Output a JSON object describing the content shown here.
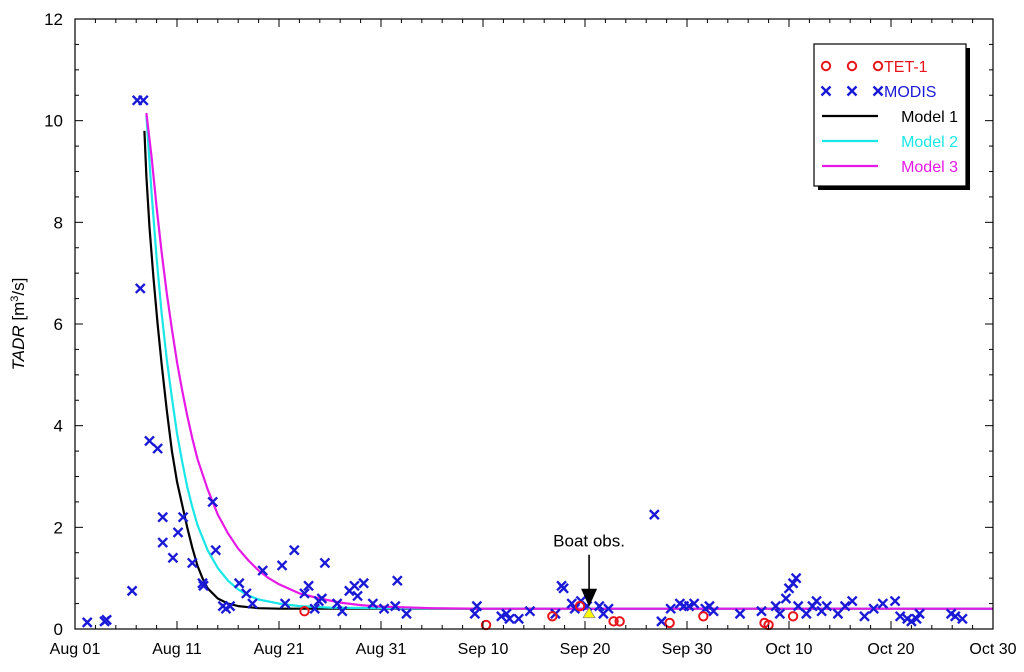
{
  "chart_data": {
    "type": "scatter",
    "xlabel": "",
    "ylabel_main": "TADR",
    "ylabel_unit_pre": " [m",
    "ylabel_unit_sup": "3",
    "ylabel_unit_post": "/s]",
    "x_origin": "Aug 01",
    "xlim": [
      0,
      90
    ],
    "ylim": [
      0,
      12
    ],
    "x_ticks": [
      {
        "day": 0,
        "label": "Aug 01"
      },
      {
        "day": 10,
        "label": "Aug 11"
      },
      {
        "day": 20,
        "label": "Aug 21"
      },
      {
        "day": 30,
        "label": "Aug 31"
      },
      {
        "day": 40,
        "label": "Sep 10"
      },
      {
        "day": 50,
        "label": "Sep 20"
      },
      {
        "day": 60,
        "label": "Sep 30"
      },
      {
        "day": 70,
        "label": "Oct 10"
      },
      {
        "day": 80,
        "label": "Oct 20"
      },
      {
        "day": 90,
        "label": "Oct 30"
      }
    ],
    "y_ticks": [
      0,
      2,
      4,
      6,
      8,
      10,
      12
    ],
    "grid": false,
    "legend_position": "top-right",
    "annotation": {
      "text": "Boat obs.",
      "day": 50.4,
      "value": 0.32,
      "color": "#ffff00"
    },
    "colors": {
      "tet1": "#e8141c",
      "modis": "#1a1ad6",
      "model1": "#000000",
      "model2": "#19e6e6",
      "model3": "#e619e6"
    },
    "series": [
      {
        "name": "TET-1",
        "kind": "marker-circle",
        "points": [
          [
            22.5,
            0.35
          ],
          [
            40.3,
            0.08
          ],
          [
            46.8,
            0.25
          ],
          [
            49.5,
            0.45
          ],
          [
            52.8,
            0.15
          ],
          [
            53.4,
            0.15
          ],
          [
            58.3,
            0.12
          ],
          [
            61.6,
            0.25
          ],
          [
            67.6,
            0.12
          ],
          [
            68.0,
            0.08
          ],
          [
            70.4,
            0.25
          ]
        ]
      },
      {
        "name": "MODIS",
        "kind": "marker-x",
        "points": [
          [
            1.2,
            0.13
          ],
          [
            2.9,
            0.15
          ],
          [
            3.1,
            0.18
          ],
          [
            5.6,
            0.75
          ],
          [
            6.1,
            10.4
          ],
          [
            6.7,
            10.4
          ],
          [
            6.4,
            6.7
          ],
          [
            7.3,
            3.7
          ],
          [
            8.1,
            3.55
          ],
          [
            8.6,
            2.2
          ],
          [
            8.6,
            1.7
          ],
          [
            9.6,
            1.4
          ],
          [
            10.1,
            1.9
          ],
          [
            10.6,
            2.2
          ],
          [
            11.5,
            1.3
          ],
          [
            12.5,
            0.9
          ],
          [
            12.6,
            0.85
          ],
          [
            13.5,
            2.5
          ],
          [
            13.8,
            1.55
          ],
          [
            14.5,
            0.45
          ],
          [
            15.2,
            0.45
          ],
          [
            14.8,
            0.4
          ],
          [
            16.1,
            0.9
          ],
          [
            16.8,
            0.7
          ],
          [
            17.4,
            0.5
          ],
          [
            18.4,
            1.15
          ],
          [
            20.3,
            1.25
          ],
          [
            20.6,
            0.5
          ],
          [
            21.5,
            1.55
          ],
          [
            22.5,
            0.7
          ],
          [
            22.9,
            0.85
          ],
          [
            23.5,
            0.4
          ],
          [
            23.9,
            0.55
          ],
          [
            24.2,
            0.6
          ],
          [
            24.5,
            1.3
          ],
          [
            25.7,
            0.5
          ],
          [
            26.2,
            0.35
          ],
          [
            26.9,
            0.75
          ],
          [
            27.4,
            0.85
          ],
          [
            27.7,
            0.65
          ],
          [
            28.3,
            0.9
          ],
          [
            29.2,
            0.5
          ],
          [
            30.3,
            0.4
          ],
          [
            31.4,
            0.45
          ],
          [
            31.6,
            0.95
          ],
          [
            32.5,
            0.3
          ],
          [
            39.2,
            0.3
          ],
          [
            39.4,
            0.45
          ],
          [
            41.8,
            0.25
          ],
          [
            42.3,
            0.3
          ],
          [
            42.6,
            0.2
          ],
          [
            43.5,
            0.2
          ],
          [
            44.6,
            0.35
          ],
          [
            47.1,
            0.3
          ],
          [
            47.7,
            0.85
          ],
          [
            47.9,
            0.8
          ],
          [
            48.7,
            0.5
          ],
          [
            49.0,
            0.4
          ],
          [
            49.6,
            0.55
          ],
          [
            50.2,
            0.45
          ],
          [
            51.4,
            0.45
          ],
          [
            51.8,
            0.3
          ],
          [
            52.3,
            0.4
          ],
          [
            56.8,
            2.25
          ],
          [
            57.5,
            0.15
          ],
          [
            58.4,
            0.4
          ],
          [
            59.3,
            0.5
          ],
          [
            59.7,
            0.45
          ],
          [
            60.2,
            0.45
          ],
          [
            60.7,
            0.5
          ],
          [
            61.8,
            0.4
          ],
          [
            62.2,
            0.45
          ],
          [
            62.6,
            0.35
          ],
          [
            65.2,
            0.3
          ],
          [
            67.3,
            0.35
          ],
          [
            68.7,
            0.45
          ],
          [
            69.1,
            0.3
          ],
          [
            69.7,
            0.6
          ],
          [
            70.0,
            0.8
          ],
          [
            70.4,
            0.9
          ],
          [
            70.7,
            1.0
          ],
          [
            70.9,
            0.45
          ],
          [
            71.7,
            0.3
          ],
          [
            72.3,
            0.45
          ],
          [
            72.7,
            0.55
          ],
          [
            73.2,
            0.35
          ],
          [
            73.7,
            0.45
          ],
          [
            74.8,
            0.3
          ],
          [
            75.5,
            0.45
          ],
          [
            76.2,
            0.55
          ],
          [
            77.4,
            0.25
          ],
          [
            78.3,
            0.4
          ],
          [
            79.2,
            0.5
          ],
          [
            80.4,
            0.55
          ],
          [
            80.9,
            0.25
          ],
          [
            81.6,
            0.2
          ],
          [
            82.0,
            0.15
          ],
          [
            82.5,
            0.2
          ],
          [
            82.8,
            0.3
          ],
          [
            85.9,
            0.3
          ],
          [
            86.3,
            0.25
          ],
          [
            87.0,
            0.2
          ]
        ]
      },
      {
        "name": "Model 1",
        "kind": "line",
        "points": [
          [
            6.8,
            9.8
          ],
          [
            7.0,
            8.9
          ],
          [
            7.3,
            7.9
          ],
          [
            7.7,
            6.9
          ],
          [
            8.1,
            6.0
          ],
          [
            8.5,
            5.2
          ],
          [
            9.0,
            4.3
          ],
          [
            9.5,
            3.5
          ],
          [
            10.0,
            2.9
          ],
          [
            10.5,
            2.45
          ],
          [
            11.0,
            2.0
          ],
          [
            11.5,
            1.6
          ],
          [
            12.0,
            1.25
          ],
          [
            12.5,
            1.0
          ],
          [
            13.0,
            0.8
          ],
          [
            14.0,
            0.6
          ],
          [
            15.0,
            0.5
          ],
          [
            16.0,
            0.45
          ],
          [
            18.0,
            0.41
          ],
          [
            20.0,
            0.4
          ],
          [
            25.0,
            0.4
          ],
          [
            30.0,
            0.4
          ],
          [
            40.0,
            0.4
          ],
          [
            50.0,
            0.4
          ],
          [
            60.0,
            0.4
          ],
          [
            70.0,
            0.4
          ],
          [
            80.0,
            0.4
          ],
          [
            90.0,
            0.4
          ]
        ]
      },
      {
        "name": "Model 2",
        "kind": "line",
        "points": [
          [
            7.0,
            10.1
          ],
          [
            7.5,
            8.6
          ],
          [
            8.0,
            7.3
          ],
          [
            8.5,
            6.2
          ],
          [
            9.0,
            5.3
          ],
          [
            9.5,
            4.55
          ],
          [
            10.0,
            3.85
          ],
          [
            10.5,
            3.3
          ],
          [
            11.0,
            2.8
          ],
          [
            11.5,
            2.4
          ],
          [
            12.0,
            2.05
          ],
          [
            13.0,
            1.55
          ],
          [
            14.0,
            1.2
          ],
          [
            15.0,
            0.95
          ],
          [
            16.0,
            0.78
          ],
          [
            17.0,
            0.66
          ],
          [
            18.0,
            0.58
          ],
          [
            20.0,
            0.5
          ],
          [
            22.0,
            0.45
          ],
          [
            25.0,
            0.42
          ],
          [
            30.0,
            0.41
          ],
          [
            40.0,
            0.4
          ],
          [
            60.0,
            0.4
          ],
          [
            90.0,
            0.4
          ]
        ]
      },
      {
        "name": "Model 3",
        "kind": "line",
        "points": [
          [
            7.0,
            10.15
          ],
          [
            7.5,
            9.3
          ],
          [
            8.0,
            8.3
          ],
          [
            8.5,
            7.4
          ],
          [
            9.0,
            6.6
          ],
          [
            9.5,
            5.9
          ],
          [
            10.0,
            5.25
          ],
          [
            10.5,
            4.7
          ],
          [
            11.0,
            4.2
          ],
          [
            11.5,
            3.75
          ],
          [
            12.0,
            3.35
          ],
          [
            13.0,
            2.75
          ],
          [
            14.0,
            2.25
          ],
          [
            15.0,
            1.88
          ],
          [
            16.0,
            1.58
          ],
          [
            17.0,
            1.35
          ],
          [
            18.0,
            1.15
          ],
          [
            19.0,
            1.0
          ],
          [
            20.0,
            0.88
          ],
          [
            22.0,
            0.7
          ],
          [
            24.0,
            0.6
          ],
          [
            26.0,
            0.52
          ],
          [
            28.0,
            0.47
          ],
          [
            30.0,
            0.44
          ],
          [
            35.0,
            0.41
          ],
          [
            40.0,
            0.4
          ],
          [
            60.0,
            0.4
          ],
          [
            90.0,
            0.4
          ]
        ]
      }
    ]
  }
}
